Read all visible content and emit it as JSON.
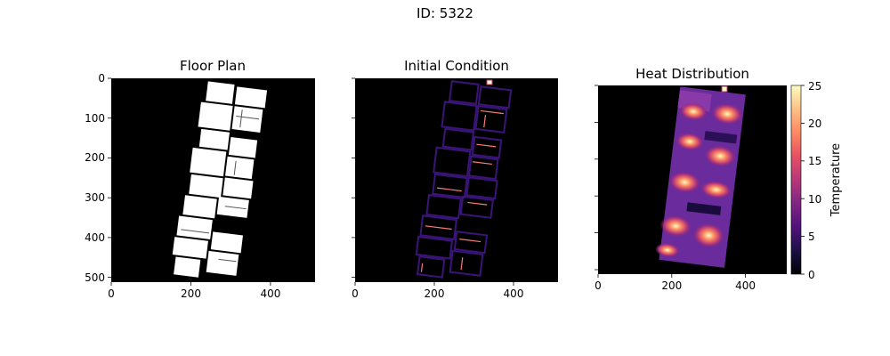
{
  "suptitle": "ID: 5322",
  "colors": {
    "background_plot": "#000000",
    "floor_fill": "#ffffff",
    "outline": "#3a1478",
    "hot": "#fcfdbf",
    "warm": "#fb8861",
    "mid": "#b73779",
    "cool": "#51127c"
  },
  "chart_data": [
    {
      "type": "heatmap",
      "title": "Floor Plan",
      "xlim": [
        0,
        512
      ],
      "ylim": [
        512,
        0
      ],
      "xticks": [
        0,
        200,
        400
      ],
      "yticks": [
        0,
        100,
        200,
        300,
        400,
        500
      ],
      "colormap": "gray",
      "grid": false
    },
    {
      "type": "heatmap",
      "title": "Initial Condition",
      "xlim": [
        0,
        512
      ],
      "ylim": [
        512,
        0
      ],
      "xticks": [
        0,
        200,
        400
      ],
      "colormap": "magma",
      "grid": false
    },
    {
      "type": "heatmap",
      "title": "Heat Distribution",
      "xlim": [
        0,
        512
      ],
      "ylim": [
        512,
        0
      ],
      "xticks": [
        0,
        200,
        400
      ],
      "colormap": "magma",
      "colorbar": {
        "label": "Temperature",
        "range": [
          0,
          25
        ],
        "ticks": [
          0,
          5,
          10,
          15,
          20,
          25
        ]
      },
      "grid": false
    }
  ]
}
